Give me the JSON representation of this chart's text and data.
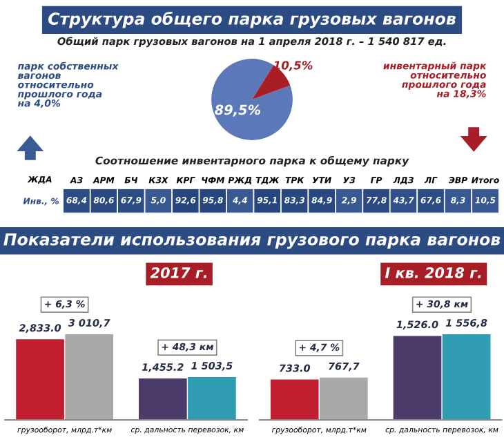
{
  "chart_data": [
    {
      "type": "pie",
      "title": "Структура общего парка грузовых вагонов",
      "subtitle": "Общий парк грузовых вагонов на 1 апреля 2018 г. – 1 540 817 ед.",
      "categories": [
        null,
        null
      ],
      "values": [
        89.5,
        10.5
      ],
      "colors": [
        "#5b79b9",
        "#a81e26"
      ],
      "value_labels": [
        "89,5%",
        "10,5%"
      ],
      "annotations": [
        "парк собственных\nвагонов\nотносительно\nпрошлого года\nна 4,0%",
        "инвентарный парк\nотносительно\nпрошлого года\nна 18,3%"
      ]
    },
    {
      "type": "heatmap",
      "title": "Соотношение инвентарного парка к общему парку",
      "categories": [
        "АЗ",
        "АРМ",
        "БЧ",
        "КЗХ",
        "КРГ",
        "ЧФМ",
        "РЖД",
        "ТДЖ",
        "ТРК",
        "УТИ",
        "УЗ",
        "ГР",
        "ЛДЗ",
        "ЛГ",
        "ЭВР",
        "Итого"
      ],
      "y_categories": [
        "Инв., %"
      ],
      "cells": [
        [
          68.4,
          80.6,
          67.9,
          5.0,
          92.6,
          95.8,
          4.4,
          95.1,
          83.3,
          84.9,
          2.9,
          77.8,
          43.7,
          67.6,
          8.3,
          10.5
        ]
      ],
      "cell_labels": [
        [
          "68,4",
          "80,6",
          "67,9",
          "5,0",
          "92,6",
          "95,8",
          "4,4",
          "95,1",
          "83,3",
          "84,9",
          "2,9",
          "77,8",
          "43,7",
          "67,6",
          "8,3",
          "10,5"
        ]
      ],
      "annotations": [
        "ЖДА"
      ]
    },
    {
      "type": "bar",
      "title": "Показатели использования грузового парка вагонов",
      "subtitle": "2017 г.",
      "categories": [
        "грузооборот, млрд.т*км",
        "ср. дальность перевозок, км"
      ],
      "series": [
        {
          "colors": [
            "#c11f2f",
            "#4b3b6b"
          ],
          "values": [
            2833.0,
            1455.2
          ],
          "value_labels": [
            "2,833.0",
            "1,455.2"
          ]
        },
        {
          "colors": [
            "#a9a9ab",
            "#2f9cb1"
          ],
          "values": [
            3010.7,
            1503.5
          ],
          "value_labels": [
            "3 010,7",
            "1 503,5"
          ]
        }
      ],
      "annotations": [
        "+ 6,3 %",
        "+ 48,3 км"
      ],
      "tick_labels": "x"
    },
    {
      "type": "bar",
      "subtitle": "I кв. 2018 г.",
      "categories": [
        "грузооборот, млрд.т*км",
        "ср. дальность перевозок, км"
      ],
      "series": [
        {
          "colors": [
            "#c11f2f",
            "#4b3b6b"
          ],
          "values": [
            733.0,
            1526.0
          ],
          "value_labels": [
            "733.0",
            "1,526.0"
          ]
        },
        {
          "colors": [
            "#a9a9ab",
            "#2f9cb1"
          ],
          "values": [
            767.7,
            1556.8
          ],
          "value_labels": [
            "767,7",
            "1 556,8"
          ]
        }
      ],
      "annotations": [
        "+ 4,7 %",
        "+ 30,8 км"
      ],
      "tick_labels": "x"
    }
  ]
}
